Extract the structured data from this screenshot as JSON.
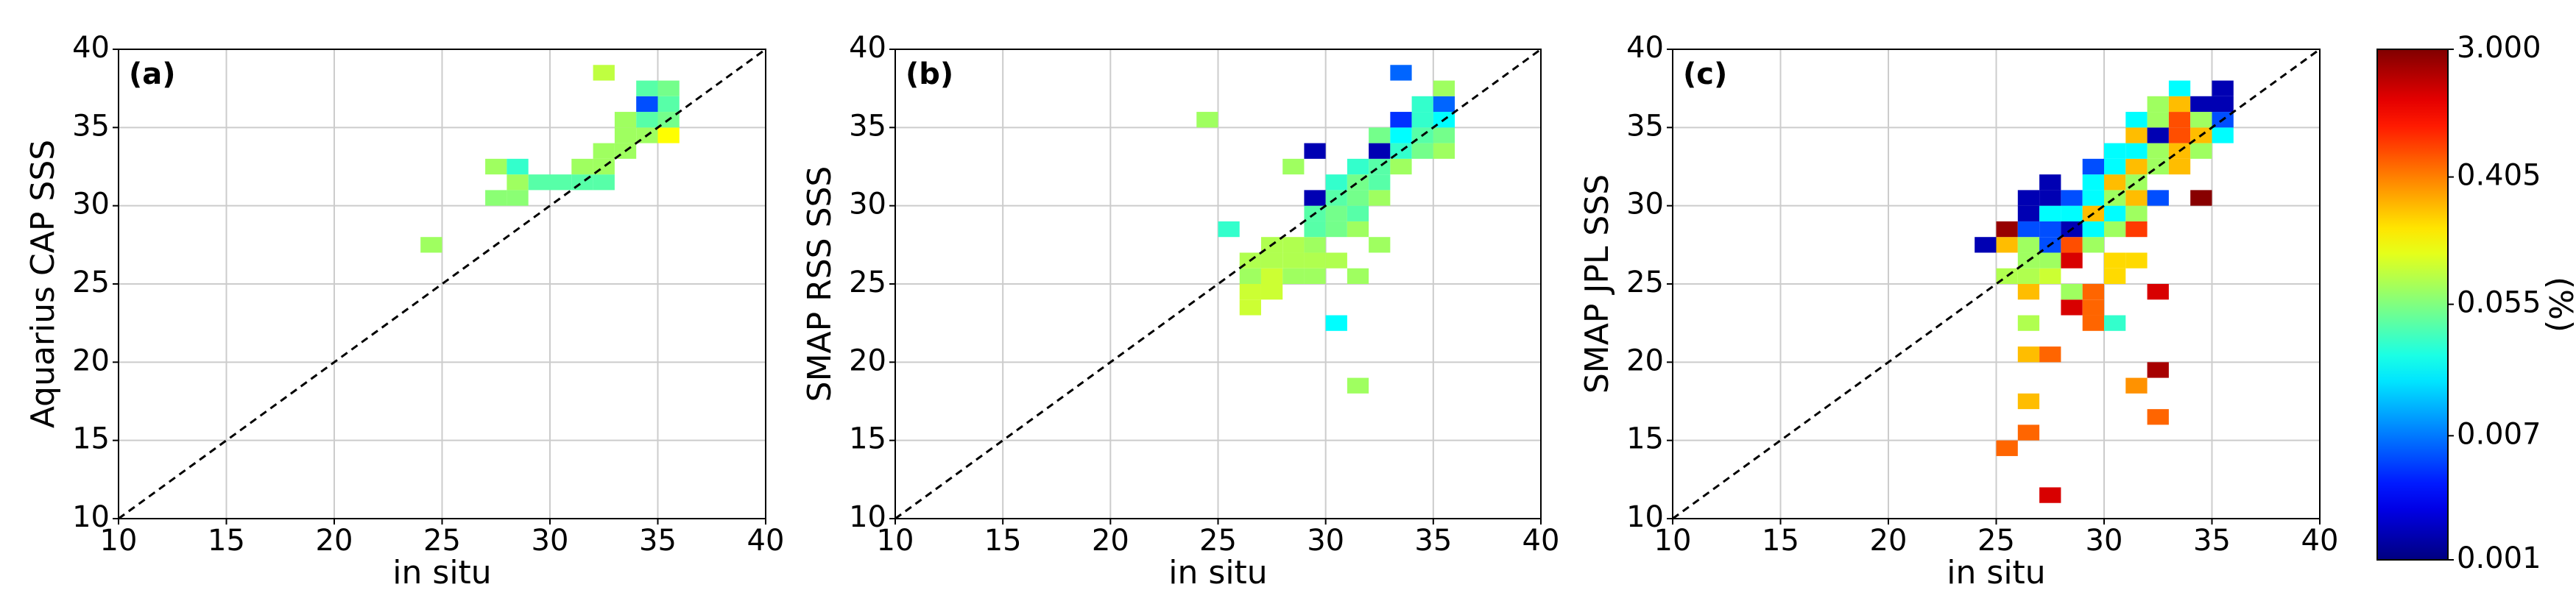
{
  "chart_data": [
    {
      "type": "heatmap",
      "title": "(a)",
      "xlabel": "in situ",
      "ylabel": "Aquarius CAP SSS",
      "xlim": [
        10,
        40
      ],
      "ylim": [
        10,
        40
      ],
      "xticks": [
        10,
        15,
        20,
        25,
        30,
        35,
        40
      ],
      "yticks": [
        10,
        15,
        20,
        25,
        30,
        35,
        40
      ],
      "grid": true,
      "colormap": "jet",
      "log_color": true,
      "clim": [
        0.001,
        3
      ],
      "x": [
        24,
        27,
        28,
        28,
        29,
        30,
        31,
        32,
        27,
        28,
        31,
        32,
        32,
        33,
        33,
        34,
        35,
        33,
        34,
        35,
        34,
        35,
        34,
        35,
        32
      ],
      "y": [
        27,
        30,
        30,
        31,
        31,
        31,
        31,
        31,
        32,
        32,
        32,
        32,
        33,
        33,
        34,
        34,
        34,
        35,
        35,
        35,
        36,
        36,
        37,
        37,
        38
      ],
      "values": [
        0.07,
        0.06,
        0.06,
        0.07,
        0.04,
        0.04,
        0.04,
        0.04,
        0.07,
        0.03,
        0.07,
        0.07,
        0.07,
        0.07,
        0.07,
        0.07,
        0.15,
        0.07,
        0.04,
        0.05,
        0.005,
        0.04,
        0.04,
        0.05,
        0.09
      ]
    },
    {
      "type": "heatmap",
      "title": "(b)",
      "xlabel": "in situ",
      "ylabel": "SMAP RSS SSS",
      "xlim": [
        10,
        40
      ],
      "ylim": [
        10,
        40
      ],
      "xticks": [
        10,
        15,
        20,
        25,
        30,
        35,
        40
      ],
      "yticks": [
        10,
        15,
        20,
        25,
        30,
        35,
        40
      ],
      "grid": true,
      "colormap": "jet",
      "log_color": true,
      "clim": [
        0.001,
        3
      ],
      "x": [
        31,
        30,
        26,
        26,
        27,
        26,
        27,
        28,
        29,
        31,
        26,
        27,
        28,
        29,
        30,
        27,
        28,
        29,
        32,
        25,
        29,
        30,
        31,
        29,
        30,
        31,
        29,
        30,
        31,
        32,
        30,
        31,
        32,
        28,
        31,
        32,
        33,
        29,
        32,
        33,
        34,
        35,
        32,
        33,
        34,
        35,
        24,
        33,
        34,
        35,
        34,
        35,
        35,
        33
      ],
      "y": [
        18,
        22,
        23,
        24,
        24,
        25,
        25,
        25,
        25,
        25,
        26,
        26,
        26,
        26,
        26,
        27,
        27,
        27,
        27,
        28,
        28,
        28,
        28,
        29,
        29,
        29,
        30,
        30,
        30,
        30,
        31,
        31,
        31,
        32,
        32,
        32,
        32,
        33,
        33,
        33,
        33,
        33,
        34,
        34,
        34,
        34,
        35,
        35,
        35,
        35,
        36,
        36,
        37,
        38
      ],
      "values": [
        0.07,
        0.02,
        0.1,
        0.1,
        0.1,
        0.07,
        0.1,
        0.07,
        0.07,
        0.07,
        0.08,
        0.08,
        0.08,
        0.08,
        0.08,
        0.08,
        0.08,
        0.07,
        0.07,
        0.03,
        0.04,
        0.05,
        0.07,
        0.04,
        0.05,
        0.04,
        0.0015,
        0.04,
        0.05,
        0.07,
        0.03,
        0.05,
        0.04,
        0.07,
        0.03,
        0.04,
        0.07,
        0.0015,
        0.0015,
        0.03,
        0.05,
        0.07,
        0.05,
        0.02,
        0.04,
        0.05,
        0.07,
        0.004,
        0.03,
        0.02,
        0.03,
        0.006,
        0.07,
        0.006
      ]
    },
    {
      "type": "heatmap",
      "title": "(c)",
      "xlabel": "in situ",
      "ylabel": "SMAP JPL SSS",
      "xlim": [
        10,
        40
      ],
      "ylim": [
        10,
        40
      ],
      "xticks": [
        10,
        15,
        20,
        25,
        30,
        35,
        40
      ],
      "yticks": [
        10,
        15,
        20,
        25,
        30,
        35,
        40
      ],
      "grid": true,
      "colormap": "jet",
      "log_color": true,
      "clim": [
        0.001,
        3
      ],
      "clabel": "(%)",
      "cticks": [
        0.001,
        0.007,
        0.055,
        0.405,
        {
          "value": 3,
          "label": "3.000"
        }
      ],
      "x": [
        27,
        25,
        26,
        32,
        26,
        31,
        32,
        26,
        27,
        26,
        29,
        30,
        28,
        29,
        26,
        28,
        29,
        32,
        25,
        26,
        27,
        30,
        26,
        27,
        28,
        30,
        31,
        24,
        25,
        26,
        27,
        28,
        29,
        25,
        26,
        27,
        28,
        29,
        30,
        31,
        26,
        27,
        28,
        29,
        30,
        31,
        26,
        27,
        28,
        29,
        30,
        31,
        32,
        34,
        27,
        29,
        30,
        31,
        29,
        30,
        31,
        32,
        33,
        30,
        31,
        32,
        33,
        34,
        31,
        32,
        33,
        34,
        35,
        31,
        32,
        33,
        34,
        35,
        32,
        33,
        34,
        35,
        33,
        35
      ],
      "y": [
        11,
        14,
        15,
        16,
        17,
        18,
        19,
        20,
        20,
        22,
        22,
        22,
        23,
        23,
        24,
        24,
        24,
        24,
        25,
        25,
        25,
        25,
        26,
        26,
        26,
        26,
        26,
        27,
        27,
        27,
        27,
        27,
        27,
        28,
        28,
        28,
        28,
        28,
        28,
        28,
        29,
        29,
        29,
        29,
        29,
        29,
        30,
        30,
        30,
        30,
        30,
        30,
        30,
        30,
        31,
        31,
        31,
        31,
        32,
        32,
        32,
        32,
        32,
        33,
        33,
        33,
        33,
        33,
        34,
        34,
        34,
        34,
        34,
        35,
        35,
        35,
        35,
        35,
        36,
        36,
        36,
        36,
        37,
        37
      ],
      "values": [
        1.5,
        0.5,
        0.5,
        0.5,
        0.25,
        0.35,
        2.2,
        0.25,
        0.5,
        0.08,
        0.5,
        0.03,
        1.5,
        0.5,
        0.25,
        0.07,
        0.5,
        1.5,
        0.08,
        0.08,
        0.1,
        0.2,
        0.07,
        0.07,
        1.5,
        0.2,
        0.2,
        0.0015,
        0.25,
        0.07,
        0.005,
        0.6,
        0.07,
        2.5,
        0.005,
        0.005,
        0.0015,
        0.02,
        0.07,
        0.7,
        0.0015,
        0.02,
        0.02,
        0.25,
        0.02,
        0.07,
        0.0015,
        0.0015,
        0.005,
        0.02,
        0.07,
        0.25,
        0.005,
        2.8,
        0.0015,
        0.02,
        0.25,
        0.07,
        0.005,
        0.02,
        0.25,
        0.07,
        0.25,
        0.02,
        0.02,
        0.07,
        0.25,
        0.07,
        0.25,
        0.0015,
        0.6,
        0.25,
        0.02,
        0.02,
        0.07,
        0.6,
        0.07,
        0.005,
        0.07,
        0.25,
        0.0015,
        0.0015,
        0.02,
        0.0015
      ]
    }
  ]
}
